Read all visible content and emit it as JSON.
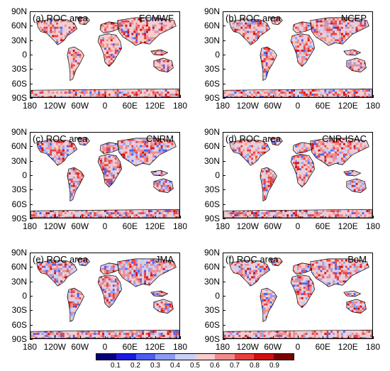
{
  "panels": [
    {
      "label": "(a) ROC area",
      "model": "ECMWF"
    },
    {
      "label": "(b) ROC area",
      "model": "NCEP"
    },
    {
      "label": "(c) ROC area",
      "model": "CNRM"
    },
    {
      "label": "(d) ROC area",
      "model": "CNR-ISAC"
    },
    {
      "label": "(e) ROC area",
      "model": "JMA"
    },
    {
      "label": "(f) ROC area",
      "model": "BoM"
    }
  ],
  "lat_labels": [
    "90N",
    "60N",
    "30N",
    "0",
    "30S",
    "60S",
    "90S"
  ],
  "lon_labels": [
    "180",
    "120W",
    "60W",
    "0",
    "60E",
    "120E",
    "180"
  ],
  "colorbar": {
    "labels": [
      "0.1",
      "0.2",
      "0.3",
      "0.4",
      "0.5",
      "0.6",
      "0.7",
      "0.8",
      "0.9"
    ],
    "colors": [
      "#08007a",
      "#1a1adf",
      "#4b5ef0",
      "#8d9bf2",
      "#c9cff7",
      "#f6cccc",
      "#f08b8b",
      "#e84040",
      "#d10f0f",
      "#7a0000"
    ]
  }
}
